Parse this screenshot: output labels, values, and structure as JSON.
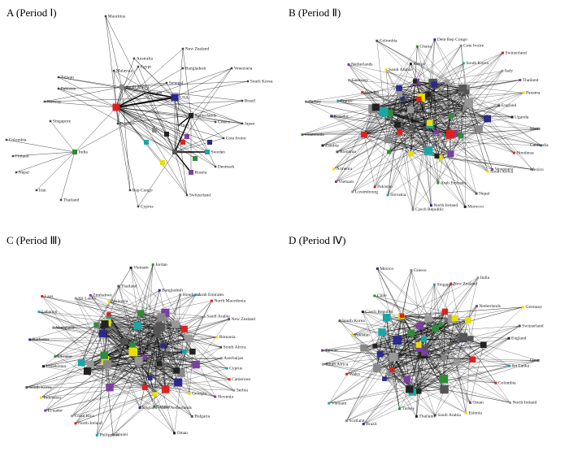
{
  "panels": [
    {
      "title": "A (Period Ⅰ)",
      "nodes": [
        "Mauritius",
        "Australia",
        "New Zealand",
        "Malaysia",
        "Egypt",
        "Bangladesh",
        "Venezuela",
        "Taiwan",
        "Pakistan",
        "Saudi Arabia",
        "Senegal",
        "Canada",
        "USA",
        "South Korea",
        "Norway",
        "Brazil",
        "Singapore",
        "UK",
        "Ecuador",
        "Netherlands",
        "Italy",
        "Greece",
        "Japan",
        "Cote Ivoire",
        "Colombia",
        "India",
        "Germany",
        "Sweden",
        "Denmark",
        "Finland",
        "Nepal",
        "Russia",
        "Iran",
        "Thailand",
        "Rep Congo",
        "Switzerland",
        "Cyprus"
      ]
    },
    {
      "title": "B (Period Ⅱ)",
      "nodes": [
        "Mali",
        "Cambodia",
        "Honduras",
        "Mexico",
        "Venezuela",
        "South Africa",
        "Nepal",
        "Morocco",
        "Arab Emirates",
        "North Ireland",
        "Czech Republic",
        "Slovakia",
        "Pakistan",
        "Luxembourg",
        "Vietnam",
        "Armenia",
        "Romania",
        "Zambia",
        "Guatemala",
        "Ecuador",
        "Turkey",
        "France",
        "Sweden",
        "Germany",
        "Netherlands",
        "Saudi Arabia",
        "Colombia",
        "Kenya",
        "Ghana",
        "Dem Rep Congo",
        "Cote Ivoire",
        "South Korea",
        "Switzerland",
        "Italy",
        "Thailand",
        "Panama",
        "England",
        "Uganda"
      ]
    },
    {
      "title": "C (Period Ⅲ)",
      "nodes": [
        "Azerbaijan",
        "Cyprus",
        "Cameroon",
        "Serbia",
        "Slovenia",
        "Georgia",
        "Bulgaria",
        "Oman",
        "Estonia",
        "England Wales Netherlands",
        "Brunei",
        "Philippines",
        "North Ireland",
        "Costa Rica",
        "Ecuador",
        "Indonesia",
        "South Korea",
        "Uzbekistan",
        "Ukraine",
        "Barbados",
        "Venezuela",
        "Lebanon",
        "Laos",
        "Sri Lanka",
        "Zimbabwe",
        "Malaysia",
        "Thailand",
        "Vietnam",
        "Jordan",
        "Bangladesh",
        "Honduras",
        "Arab Emirates",
        "North Macedonia",
        "Saudi Arabia",
        "New Zealand",
        "Romania",
        "South Africa"
      ]
    },
    {
      "title": "D (Period Ⅳ)",
      "nodes": [
        "Qatar",
        "Sri Lanka",
        "Colombia",
        "North Ireland",
        "Oman",
        "Estonia",
        "Saudi Arabia",
        "Thailand",
        "Turkey",
        "Brazil",
        "Scotland",
        "Vietnam",
        "Wales",
        "South Africa",
        "Taiwan",
        "Pakistan",
        "South Korea",
        "Czech Republic",
        "Chile",
        "Mexico",
        "Greece",
        "Singapore",
        "New Zealand",
        "India",
        "Netherlands",
        "Germany",
        "Switzerland",
        "England"
      ]
    }
  ]
}
